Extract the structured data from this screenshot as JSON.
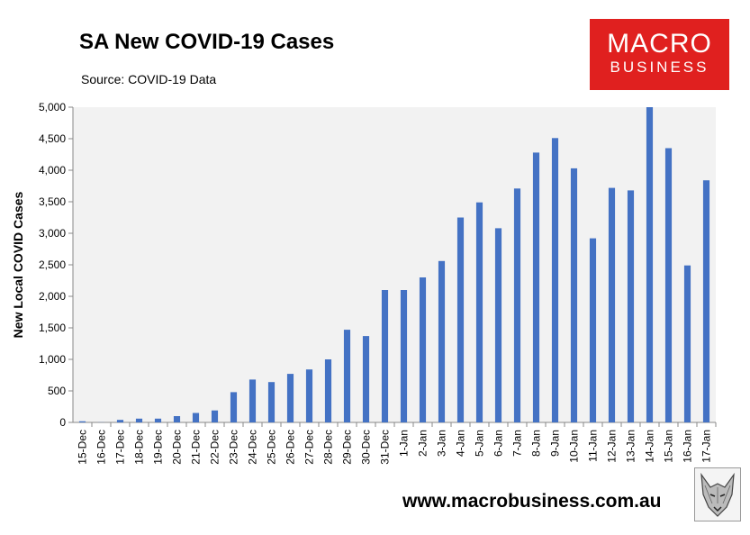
{
  "header": {
    "title": "SA New COVID-19 Cases",
    "subtitle": "Source: COVID-19 Data"
  },
  "brand": {
    "logo_line1": "MACRO",
    "logo_line2": "BUSINESS",
    "logo_color": "#e0201f",
    "footer_url": "www.macrobusiness.com.au",
    "emblem": "wolf-emblem-icon"
  },
  "chart_data": {
    "type": "bar",
    "title": "SA New COVID-19 Cases",
    "subtitle": "Source: COVID-19 Data",
    "xlabel": "",
    "ylabel": "New Local COVID Cases",
    "ylim": [
      0,
      5000
    ],
    "yticks": [
      0,
      500,
      1000,
      1500,
      2000,
      2500,
      3000,
      3500,
      4000,
      4500,
      5000
    ],
    "ytick_labels": [
      "0",
      "500",
      "1,000",
      "1,500",
      "2,000",
      "2,500",
      "3,000",
      "3,500",
      "4,000",
      "4,500",
      "5,000"
    ],
    "bar_color": "#4472c4",
    "plot_background": "#f2f2f2",
    "grid": false,
    "categories": [
      "15-Dec",
      "16-Dec",
      "17-Dec",
      "18-Dec",
      "19-Dec",
      "20-Dec",
      "21-Dec",
      "22-Dec",
      "23-Dec",
      "24-Dec",
      "25-Dec",
      "26-Dec",
      "27-Dec",
      "28-Dec",
      "29-Dec",
      "30-Dec",
      "31-Dec",
      "1-Jan",
      "2-Jan",
      "3-Jan",
      "4-Jan",
      "5-Jan",
      "6-Jan",
      "7-Jan",
      "8-Jan",
      "9-Jan",
      "10-Jan",
      "11-Jan",
      "12-Jan",
      "13-Jan",
      "14-Jan",
      "15-Jan",
      "16-Jan",
      "17-Jan"
    ],
    "values": [
      18,
      2,
      40,
      60,
      60,
      100,
      150,
      190,
      480,
      680,
      640,
      770,
      840,
      1000,
      1470,
      1370,
      2100,
      2100,
      2300,
      2560,
      3250,
      3490,
      3080,
      3710,
      4280,
      4510,
      4030,
      2920,
      3720,
      3680,
      5000,
      4350,
      2490,
      3840
    ]
  }
}
